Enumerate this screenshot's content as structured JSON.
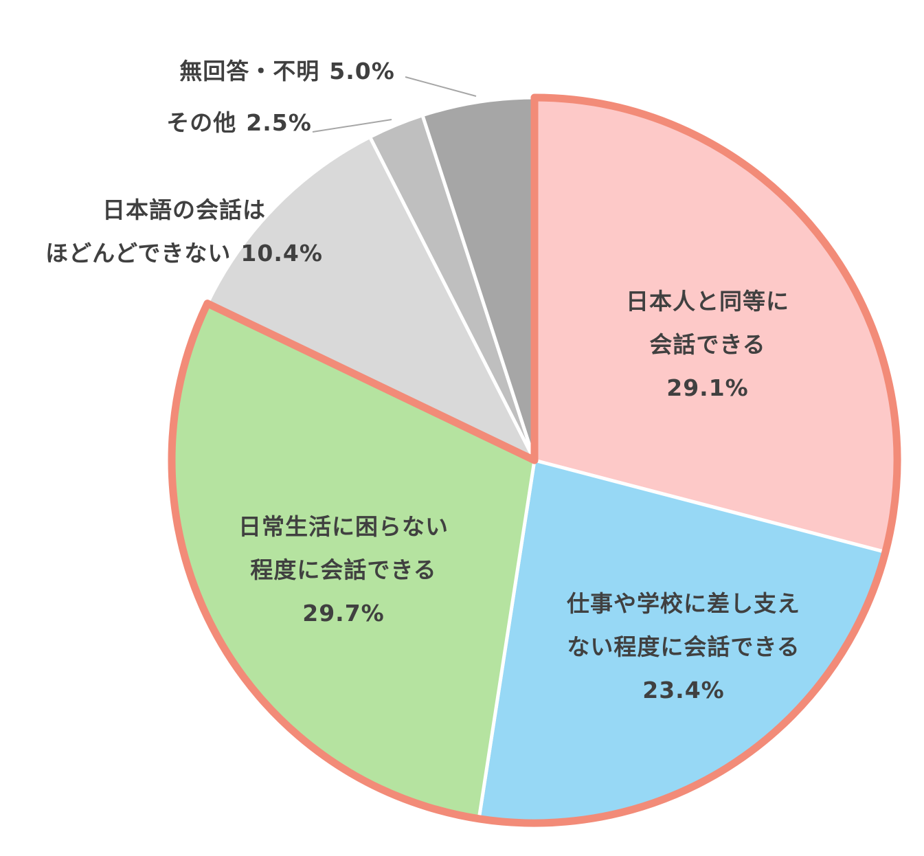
{
  "chart_data": {
    "type": "pie",
    "categories": [
      "日本人と同等に\n会話できる",
      "仕事や学校に差し支え\nない程度に会話できる",
      "日常生活に困らない\n程度に会話できる",
      "日本語の会話は\nほどんどできない",
      "その他",
      "無回答・不明"
    ],
    "values": [
      29.1,
      23.4,
      29.7,
      10.4,
      2.5,
      5.0
    ],
    "value_labels": [
      "29.1%",
      "23.4%",
      "29.7%",
      "10.4%",
      "2.5%",
      "5.0%"
    ],
    "colors": [
      "#fdc9c8",
      "#97d8f5",
      "#b5e3a0",
      "#d9d9d9",
      "#bfbfbf",
      "#a6a6a6"
    ],
    "outline": [
      true,
      true,
      true,
      false,
      false,
      false
    ],
    "outline_color": "#f28b78"
  }
}
